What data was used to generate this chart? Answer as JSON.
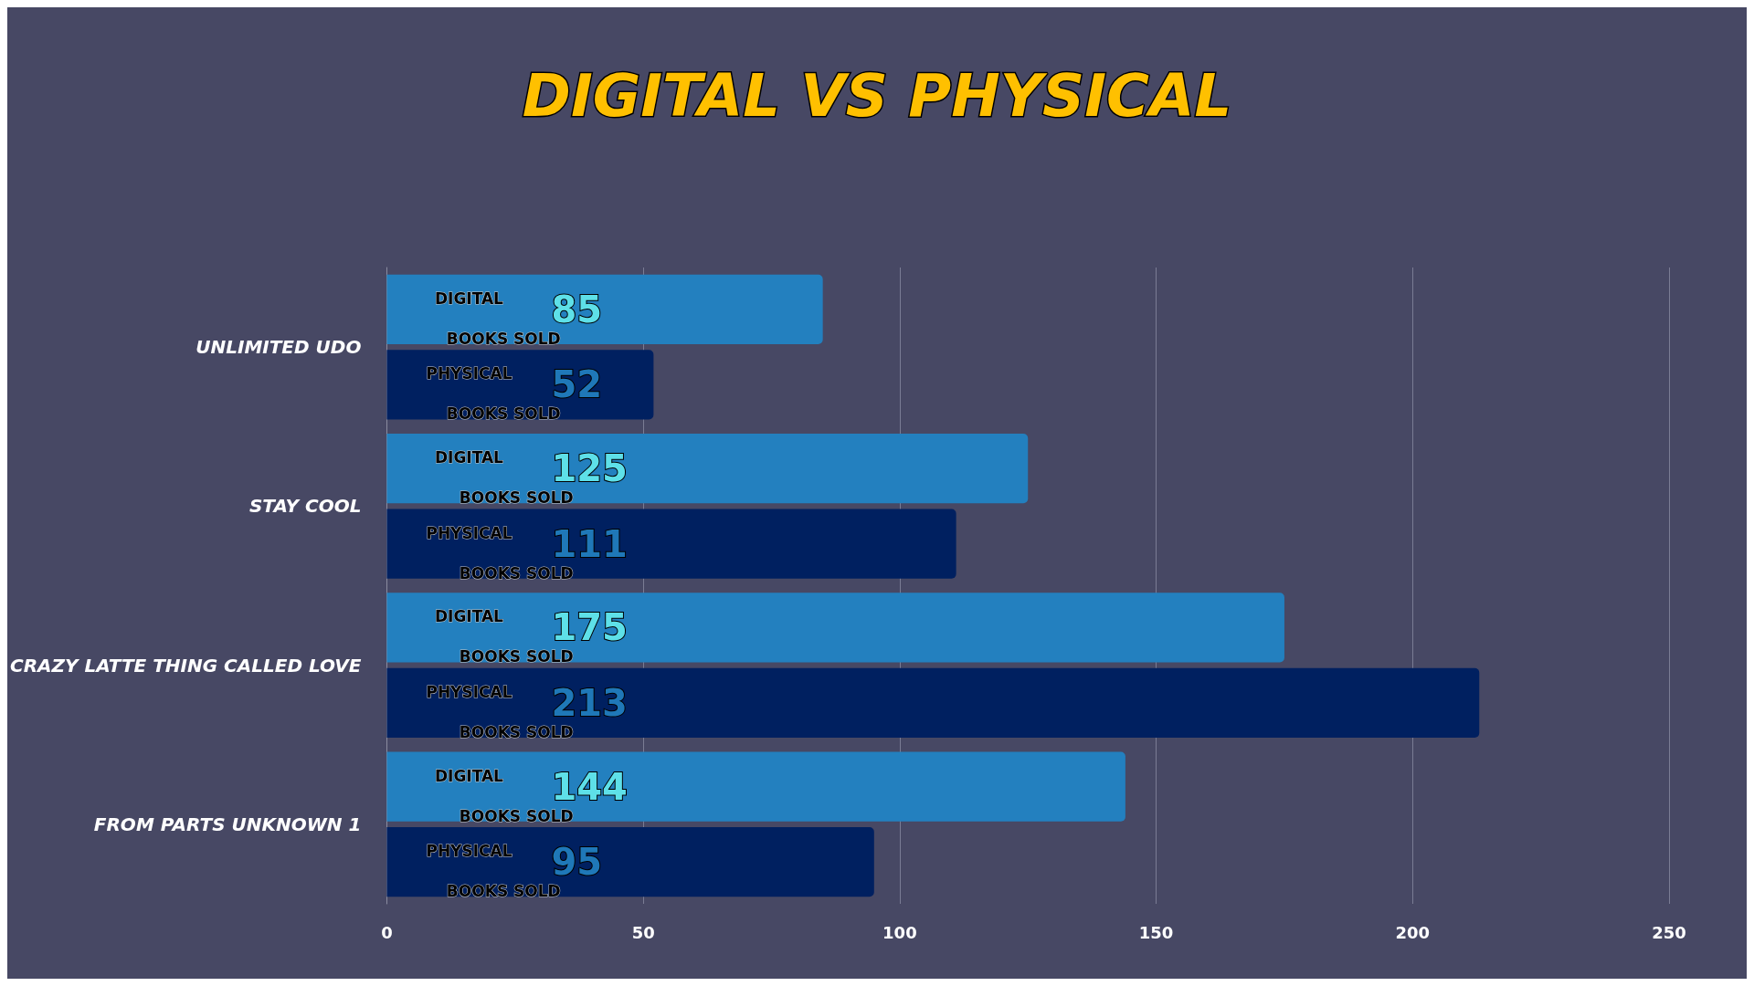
{
  "chart_data": {
    "type": "bar",
    "orientation": "horizontal",
    "title": "DIGITAL VS PHYSICAL",
    "categories": [
      "UNLIMITED UDO",
      "STAY COOL",
      "CRAZY LATTE THING CALLED LOVE",
      "FROM PARTS UNKNOWN 1"
    ],
    "series": [
      {
        "name": "DIGITAL BOOKS SOLD",
        "color": "#2380bf",
        "values": [
          85,
          125,
          175,
          144
        ]
      },
      {
        "name": "PHYSICAL BOOKS SOLD",
        "color": "#002060",
        "values": [
          52,
          111,
          213,
          95
        ]
      }
    ],
    "xlim": [
      0,
      250
    ],
    "xticks": [
      0,
      50,
      100,
      150,
      200,
      250
    ],
    "grid": "x",
    "data_labels": true,
    "legend": false
  }
}
